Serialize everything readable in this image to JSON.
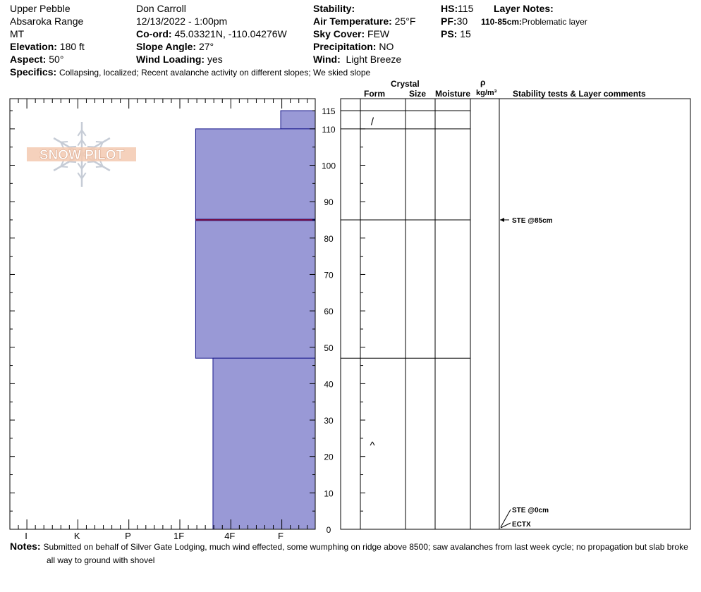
{
  "header": {
    "location": "Upper Pebble",
    "range": "Absaroka Range",
    "state": "MT",
    "elevation_label": "Elevation:",
    "elevation": "180 ft",
    "aspect_label": "Aspect:",
    "aspect": "50°",
    "observer": "Don Carroll",
    "datetime": "12/13/2022 - 1:00pm",
    "coord_label": "Co-ord:",
    "coord": "45.03321N, -110.04276W",
    "slope_label": "Slope Angle:",
    "slope": "27°",
    "wind_loading_label": "Wind Loading:",
    "wind_loading": "yes",
    "stability_label": "Stability:",
    "stability": "",
    "air_temp_label": "Air Temperature:",
    "air_temp": "25°F",
    "sky_label": "Sky Cover:",
    "sky": "FEW",
    "precip_label": "Precipitation:",
    "precip": "NO",
    "wind_label": "Wind:",
    "wind": "Light Breeze",
    "hs_label": "HS:",
    "hs": "115",
    "pf_label": "PF:",
    "pf": "30",
    "ps_label": "PS:",
    "ps": "15",
    "layer_notes_label": "Layer Notes:",
    "layer_note_range": "110-85cm:",
    "layer_note_text": "Problematic layer",
    "specifics_label": "Specifics:",
    "specifics": "Collapsing, localized; Recent avalanche activity on different slopes; We skied slope",
    "notes_label": "Notes:",
    "notes_line1": "Submitted on behalf of Silver Gate Lodging, much wind effected, some wumphing on ridge above 8500; saw avalanches from last week cycle; no propagation but slab broke",
    "notes_line2": "all way to ground with shovel"
  },
  "table_headers": {
    "crystal": "Crystal",
    "form": "Form",
    "size": "Size",
    "moisture": "Moisture",
    "rho": "ρ",
    "density_unit": "kg/m³",
    "stability_comments": "Stability tests & Layer comments"
  },
  "logo_text": "SNOW PILOT",
  "colors": {
    "layer_fill": "#9999d6",
    "layer_stroke": "#1a1a8c",
    "weak_layer_line": "#cc0000"
  },
  "chart_data": {
    "type": "bar",
    "hardness_axis": [
      "I",
      "K",
      "P",
      "1F",
      "4F",
      "F"
    ],
    "depth_ticks": [
      0,
      10,
      20,
      30,
      40,
      50,
      60,
      70,
      80,
      90,
      100,
      110,
      115
    ],
    "ylim": [
      0,
      115
    ],
    "total_depth_cm": 115,
    "layers": [
      {
        "top": 115,
        "bottom": 110,
        "hardness": "F"
      },
      {
        "top": 110,
        "bottom": 47,
        "hardness": "1F+"
      },
      {
        "top": 47,
        "bottom": 0,
        "hardness": "4F-"
      }
    ],
    "weak_layer_depth": 85,
    "layer_boundaries": [
      115,
      110,
      85,
      47
    ],
    "grain_symbols": [
      {
        "depth": 112,
        "symbol": "/"
      },
      {
        "depth": 23,
        "symbol": "^"
      }
    ],
    "stability_tests": [
      {
        "depth": 85,
        "label": "STE @85cm"
      },
      {
        "depth": 0,
        "label": "STE @0cm"
      },
      {
        "depth": 0,
        "label": "ECTX"
      }
    ]
  }
}
